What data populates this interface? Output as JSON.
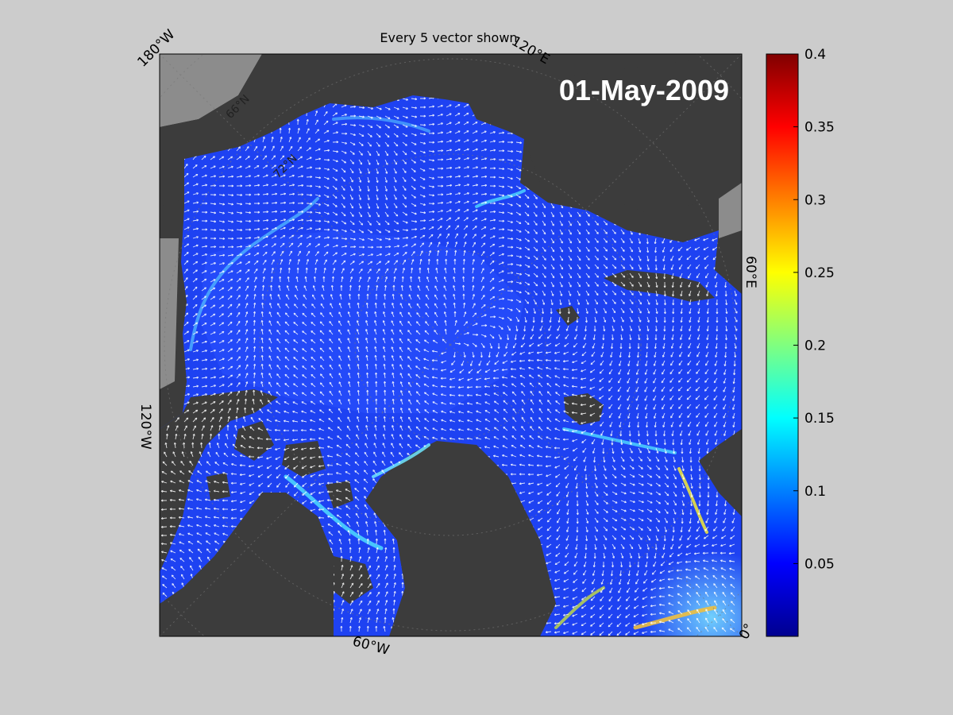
{
  "map": {
    "title": "Every 5 vector shown",
    "date_label": "01-May-2009",
    "labels": {
      "lon_180w": "180°W",
      "lon_120e": "120°E",
      "lon_60e": "60°E",
      "lon_120w": "120°W",
      "lon_60w": "60°W",
      "lon_0": "0°",
      "lat_66n": "66°N",
      "lat_72n": "72°N"
    },
    "colors": {
      "background": "#cccccc",
      "land": "#3c3c3c",
      "ocean_gray": "#8c8c8c",
      "ice_base": "#1a3cf0",
      "vector": "#ffffff"
    }
  },
  "colorbar": {
    "min": 0,
    "max": 0.4,
    "colormap": "jet",
    "ticks": [
      "0.4",
      "0.35",
      "0.3",
      "0.25",
      "0.2",
      "0.15",
      "0.1",
      "0.05"
    ],
    "tick_values": [
      0.4,
      0.35,
      0.3,
      0.25,
      0.2,
      0.15,
      0.1,
      0.05
    ]
  }
}
